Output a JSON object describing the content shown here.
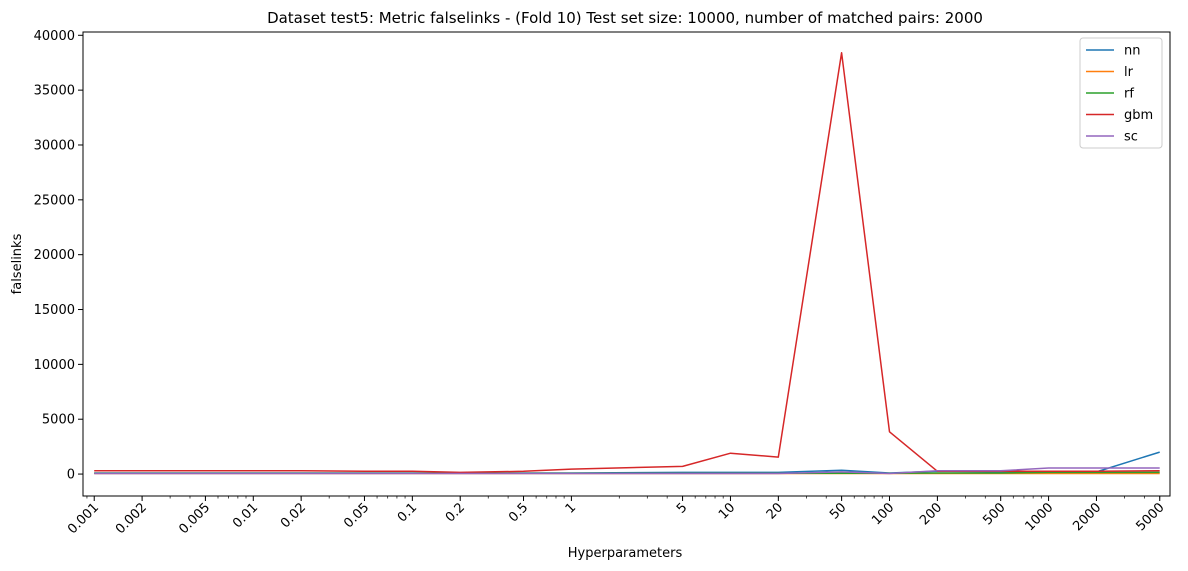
{
  "chart_data": {
    "type": "line",
    "title": "Dataset test5: Metric falselinks - (Fold 10) Test set size: 10000, number of matched pairs: 2000",
    "xlabel": "Hyperparameters",
    "ylabel": "falselinks",
    "x_scale": "log",
    "xlim": [
      0.00085,
      5800
    ],
    "ylim": [
      -2000,
      40300
    ],
    "x_ticks": [
      0.001,
      0.002,
      0.005,
      0.01,
      0.02,
      0.05,
      0.1,
      0.2,
      0.5,
      1,
      5,
      10,
      20,
      50,
      100,
      200,
      500,
      1000,
      2000,
      5000
    ],
    "x_tick_labels": [
      "0.001",
      "0.002",
      "0.005",
      "0.01",
      "0.02",
      "0.05",
      "0.1",
      "0.2",
      "0.5",
      "1",
      "5",
      "10",
      "20",
      "50",
      "100",
      "200",
      "500",
      "1000",
      "2000",
      "5000"
    ],
    "x_tick_rotation": 45,
    "y_ticks": [
      0,
      5000,
      10000,
      15000,
      20000,
      25000,
      30000,
      35000,
      40000
    ],
    "y_tick_labels": [
      "0",
      "5000",
      "10000",
      "15000",
      "20000",
      "25000",
      "30000",
      "35000",
      "40000"
    ],
    "x": [
      0.001,
      0.002,
      0.005,
      0.01,
      0.02,
      0.05,
      0.1,
      0.2,
      0.5,
      1,
      5,
      10,
      20,
      50,
      100,
      200,
      500,
      1000,
      2000,
      5000
    ],
    "series": [
      {
        "name": "nn",
        "color": "#1f77b4",
        "values": [
          100,
          100,
          100,
          100,
          100,
          100,
          100,
          100,
          100,
          100,
          150,
          150,
          150,
          350,
          100,
          250,
          200,
          200,
          200,
          2000
        ]
      },
      {
        "name": "lr",
        "color": "#ff7f0e",
        "values": [
          50,
          50,
          50,
          50,
          50,
          50,
          50,
          50,
          50,
          50,
          50,
          50,
          50,
          50,
          50,
          50,
          50,
          50,
          50,
          50
        ]
      },
      {
        "name": "rf",
        "color": "#2ca02c",
        "values": [
          80,
          80,
          80,
          80,
          80,
          80,
          80,
          80,
          80,
          80,
          80,
          80,
          80,
          80,
          80,
          100,
          100,
          150,
          150,
          150
        ]
      },
      {
        "name": "gbm",
        "color": "#d62728",
        "values": [
          300,
          300,
          300,
          300,
          300,
          250,
          250,
          150,
          250,
          450,
          700,
          1900,
          1550,
          38400,
          3850,
          250,
          250,
          250,
          250,
          300
        ]
      },
      {
        "name": "sc",
        "color": "#9467bd",
        "values": [
          50,
          50,
          50,
          50,
          50,
          50,
          50,
          50,
          50,
          50,
          50,
          50,
          50,
          200,
          50,
          300,
          300,
          550,
          550,
          550
        ]
      }
    ],
    "grid": false,
    "legend_position": "top-right"
  }
}
